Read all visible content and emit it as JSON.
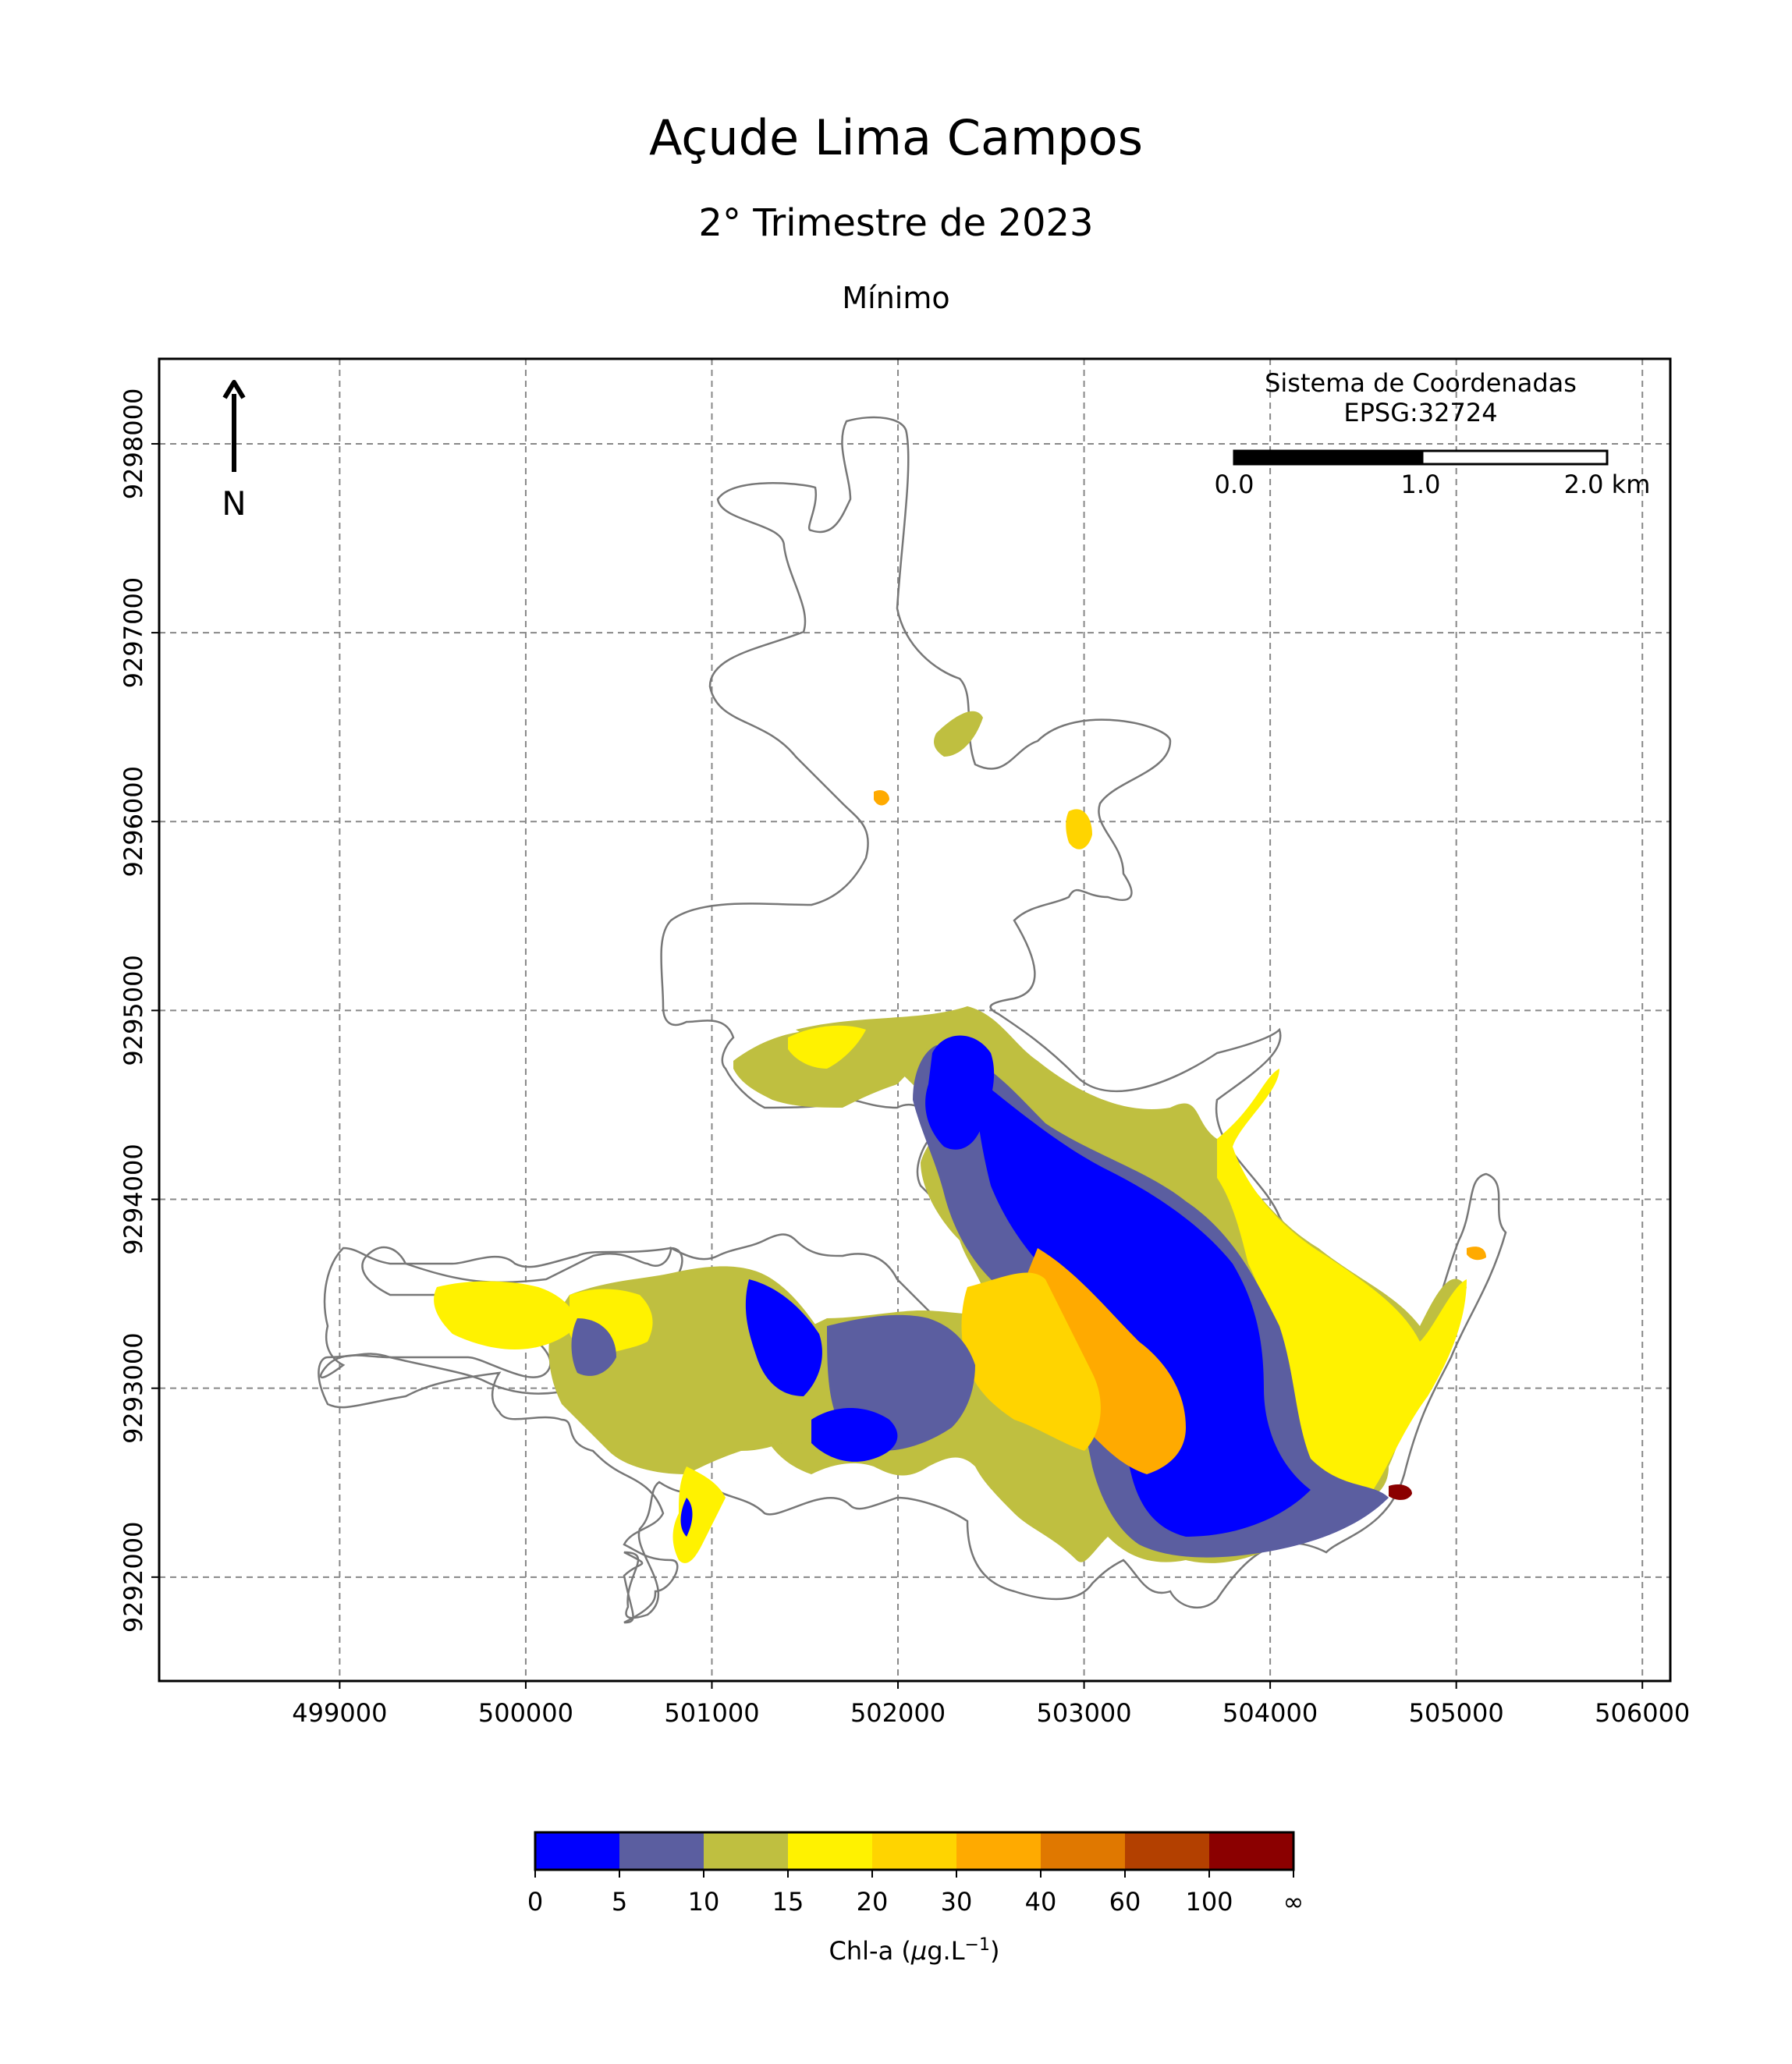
{
  "title": "Açude Lima Campos",
  "subtitle": "2° Trimestre de 2023",
  "statistic": "Mínimo",
  "crs": {
    "line1": "Sistema de Coordenadas",
    "line2": "EPSG:32724"
  },
  "north_arrow": {
    "label": "N",
    "icon": "north-arrow-icon"
  },
  "scale_bar": {
    "labels": [
      "0.0",
      "1.0",
      "2.0 km"
    ]
  },
  "chart_data": {
    "type": "heatmap",
    "title": "Açude Lima Campos",
    "subtitle": "2° Trimestre de 2023",
    "xlim": [
      498030,
      506150
    ],
    "ylim": [
      9291450,
      9298450
    ],
    "x_ticks": [
      "499000",
      "500000",
      "501000",
      "502000",
      "503000",
      "504000",
      "505000",
      "506000"
    ],
    "y_ticks": [
      "9292000",
      "9293000",
      "9294000",
      "9295000",
      "9296000",
      "9297000",
      "9298000"
    ],
    "grid": true,
    "colorbar": {
      "label_prefix": "Chl-a (",
      "label_mu": "μ",
      "label_mid": "g.L",
      "label_exp": "−1",
      "label_suffix": ")",
      "tick_labels": [
        "0",
        "5",
        "10",
        "15",
        "20",
        "30",
        "40",
        "60",
        "100",
        "∞"
      ],
      "colors": [
        "#0000ff",
        "#5b5ea0",
        "#bfbf40",
        "#fff200",
        "#ffd400",
        "#ffaa00",
        "#e07800",
        "#b34000",
        "#8b0000"
      ]
    }
  }
}
